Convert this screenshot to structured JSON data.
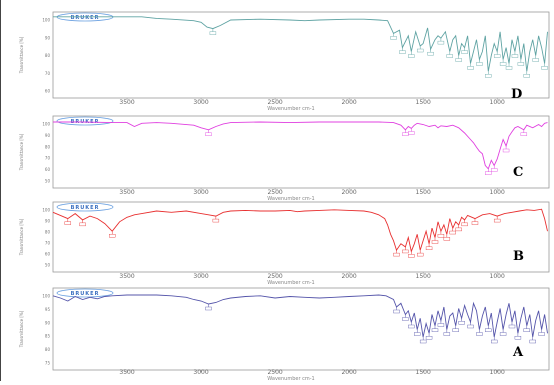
{
  "chart_data": [
    {
      "type": "line",
      "panel": "D",
      "color": "#5fa3a3",
      "xlabel": "Wavenumber cm-1",
      "ylabel": "Transmittance [%]",
      "xlim": [
        4000,
        650
      ],
      "ylim": [
        0,
        100
      ],
      "xticks": [
        "3500",
        "3000",
        "2500",
        "2000",
        "1500",
        "1000"
      ],
      "yticks": [
        "100",
        "90",
        "80",
        "70",
        "60"
      ],
      "series": [
        {
          "x": [
            4000,
            3800,
            3600,
            3400,
            3300,
            3200,
            3050,
            3000,
            2960,
            2920,
            2870,
            2800,
            2600,
            2400,
            2300,
            2200,
            2000,
            1900,
            1800,
            1740,
            1700,
            1660,
            1640,
            1600,
            1580,
            1550,
            1520,
            1500,
            1470,
            1450,
            1420,
            1400,
            1380,
            1350,
            1320,
            1300,
            1280,
            1260,
            1240,
            1220,
            1200,
            1180,
            1160,
            1140,
            1120,
            1100,
            1080,
            1060,
            1040,
            1020,
            1000,
            980,
            960,
            940,
            920,
            900,
            880,
            860,
            840,
            820,
            800,
            780,
            760,
            740,
            720,
            700,
            680,
            660
          ],
          "y": [
            99,
            99,
            99,
            99,
            97,
            96,
            94,
            92,
            86,
            84,
            88,
            95,
            96,
            95,
            94,
            95,
            96,
            96,
            95,
            94,
            78,
            82,
            60,
            75,
            55,
            80,
            62,
            65,
            85,
            58,
            70,
            75,
            72,
            80,
            55,
            70,
            75,
            50,
            65,
            60,
            75,
            40,
            55,
            70,
            45,
            55,
            75,
            30,
            50,
            65,
            55,
            80,
            45,
            60,
            40,
            70,
            55,
            75,
            45,
            65,
            30,
            55,
            70,
            50,
            75,
            60,
            40,
            80
          ]
        }
      ],
      "annotations": [
        "BRUKER"
      ]
    },
    {
      "type": "line",
      "panel": "C",
      "color": "#e040e0",
      "xlabel": "Wavenumber cm-1",
      "ylabel": "Transmittance [%]",
      "xlim": [
        4000,
        650
      ],
      "ylim": [
        0,
        100
      ],
      "xticks": [
        "3500",
        "3000",
        "2500",
        "2000",
        "1500",
        "1000"
      ],
      "yticks": [
        "100",
        "90",
        "80",
        "70",
        "60",
        "50"
      ],
      "series": [
        {
          "x": [
            4000,
            3800,
            3600,
            3500,
            3450,
            3400,
            3300,
            3200,
            3050,
            3000,
            2950,
            2900,
            2850,
            2800,
            2600,
            2400,
            2200,
            2000,
            1800,
            1700,
            1650,
            1620,
            1600,
            1580,
            1560,
            1540,
            1500,
            1460,
            1420,
            1400,
            1380,
            1340,
            1300,
            1260,
            1220,
            1180,
            1160,
            1140,
            1120,
            1100,
            1080,
            1060,
            1040,
            1020,
            1000,
            980,
            960,
            940,
            920,
            900,
            880,
            860,
            820,
            800,
            760,
            720,
            700,
            680,
            660
          ],
          "y": [
            97,
            97,
            96,
            96,
            90,
            95,
            96,
            95,
            92,
            88,
            85,
            90,
            94,
            96,
            97,
            96,
            97,
            97,
            97,
            96,
            92,
            85,
            90,
            87,
            92,
            95,
            93,
            90,
            92,
            88,
            91,
            90,
            92,
            88,
            80,
            70,
            65,
            58,
            52,
            48,
            30,
            25,
            38,
            30,
            40,
            55,
            70,
            60,
            75,
            82,
            88,
            90,
            85,
            92,
            88,
            93,
            90,
            95,
            96
          ]
        }
      ],
      "annotations": [
        "BRUKER"
      ]
    },
    {
      "type": "line",
      "panel": "B",
      "color": "#e83030",
      "xlabel": "Wavenumber cm-1",
      "ylabel": "Transmittance [%]",
      "xlim": [
        4000,
        650
      ],
      "ylim": [
        0,
        100
      ],
      "xticks": [
        "3500",
        "3000",
        "2500",
        "2000",
        "1500",
        "1000"
      ],
      "yticks": [
        "100",
        "90",
        "80",
        "70",
        "60",
        "50"
      ],
      "series": [
        {
          "x": [
            4000,
            3950,
            3900,
            3850,
            3800,
            3750,
            3700,
            3650,
            3600,
            3550,
            3500,
            3450,
            3400,
            3300,
            3200,
            3100,
            3000,
            2950,
            2900,
            2850,
            2800,
            2700,
            2600,
            2500,
            2400,
            2350,
            2300,
            2200,
            2100,
            2000,
            1900,
            1850,
            1800,
            1760,
            1740,
            1720,
            1700,
            1680,
            1650,
            1620,
            1600,
            1580,
            1560,
            1540,
            1520,
            1500,
            1480,
            1460,
            1440,
            1420,
            1400,
            1380,
            1360,
            1340,
            1320,
            1300,
            1280,
            1260,
            1240,
            1220,
            1200,
            1150,
            1100,
            1050,
            1000,
            950,
            900,
            850,
            800,
            750,
            700,
            680,
            660
          ],
          "y": [
            90,
            85,
            80,
            88,
            78,
            84,
            80,
            72,
            60,
            75,
            82,
            86,
            88,
            92,
            90,
            92,
            88,
            86,
            84,
            90,
            92,
            93,
            92,
            92,
            93,
            91,
            92,
            93,
            94,
            93,
            92,
            90,
            86,
            80,
            70,
            55,
            45,
            30,
            40,
            35,
            50,
            28,
            40,
            55,
            30,
            45,
            60,
            40,
            65,
            50,
            75,
            60,
            70,
            55,
            80,
            65,
            75,
            70,
            82,
            78,
            85,
            80,
            86,
            88,
            84,
            88,
            90,
            92,
            94,
            93,
            95,
            80,
            60
          ]
        }
      ],
      "annotations": [
        "BRUKER"
      ]
    },
    {
      "type": "line",
      "panel": "A",
      "color": "#5555aa",
      "xlabel": "Wavenumber cm-1",
      "ylabel": "Transmittance [%]",
      "xlim": [
        4000,
        650
      ],
      "ylim": [
        0,
        100
      ],
      "xticks": [
        "3500",
        "3000",
        "2500",
        "2000",
        "1500",
        "1000"
      ],
      "yticks": [
        "100",
        "95",
        "90",
        "85",
        "80",
        "75"
      ],
      "series": [
        {
          "x": [
            4000,
            3950,
            3900,
            3850,
            3800,
            3750,
            3700,
            3650,
            3600,
            3500,
            3400,
            3300,
            3200,
            3100,
            3050,
            3000,
            2950,
            2900,
            2850,
            2800,
            2700,
            2600,
            2500,
            2400,
            2300,
            2200,
            2100,
            2000,
            1900,
            1800,
            1750,
            1700,
            1680,
            1650,
            1620,
            1600,
            1580,
            1560,
            1540,
            1520,
            1500,
            1480,
            1460,
            1440,
            1420,
            1400,
            1380,
            1360,
            1340,
            1320,
            1300,
            1280,
            1260,
            1240,
            1220,
            1200,
            1180,
            1160,
            1140,
            1120,
            1100,
            1080,
            1060,
            1040,
            1020,
            1000,
            980,
            960,
            940,
            920,
            900,
            880,
            860,
            840,
            820,
            800,
            780,
            760,
            740,
            720,
            700,
            680,
            660
          ],
          "y": [
            95,
            92,
            88,
            94,
            90,
            93,
            91,
            94,
            95,
            96,
            96,
            96,
            95,
            93,
            90,
            88,
            84,
            86,
            90,
            92,
            94,
            95,
            92,
            94,
            93,
            92,
            93,
            94,
            95,
            96,
            95,
            90,
            80,
            85,
            70,
            75,
            60,
            72,
            50,
            65,
            40,
            58,
            45,
            70,
            55,
            75,
            62,
            80,
            50,
            68,
            72,
            55,
            78,
            65,
            82,
            70,
            60,
            85,
            75,
            50,
            68,
            80,
            55,
            72,
            40,
            60,
            78,
            50,
            70,
            85,
            60,
            75,
            45,
            65,
            80,
            55,
            70,
            40,
            62,
            75,
            50,
            70,
            45
          ]
        }
      ],
      "annotations": [
        "BRUKER"
      ]
    }
  ]
}
